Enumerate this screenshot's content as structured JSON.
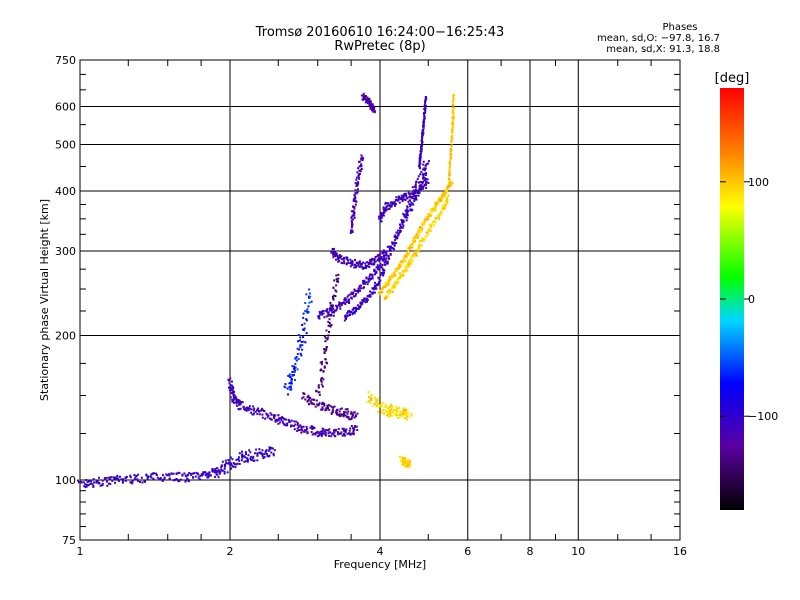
{
  "chart_data": {
    "type": "scatter",
    "title": "Tromsø 20160610 16:24:00−16:25:43",
    "subtitle": "RwPretec (8p)",
    "xlabel": "Frequency [MHz]",
    "ylabel": "Stationary phase Virtual Height [km]",
    "x_scale": "log",
    "y_scale": "log",
    "xlim": [
      1,
      16
    ],
    "ylim": [
      75,
      750
    ],
    "x_ticks": [
      "1",
      "2",
      "4",
      "6",
      "8",
      "10",
      "16"
    ],
    "y_ticks": [
      "75",
      "100",
      "200",
      "300",
      "400",
      "500",
      "600",
      "750"
    ],
    "grid": true,
    "phase_stats": {
      "heading": "Phases",
      "o_line": "mean, sd,O: −97.8, 16.7",
      "x_line": "mean, sd,X:  91.3, 18.8"
    },
    "colorbar": {
      "label": "[deg]",
      "range": [
        -180,
        180
      ],
      "ticks": [
        "100",
        "0",
        "−100"
      ],
      "tick_values": [
        100,
        0,
        -100
      ]
    },
    "series": [
      {
        "segments": [
          {
            "f": [
              1.0,
              1.1,
              1.2,
              1.35,
              1.5,
              1.65,
              1.8,
              1.9
            ],
            "h": [
              98,
              99,
              100,
              101,
              102,
              101,
              103,
              104
            ],
            "phase": -105,
            "spread": 0.03
          },
          {
            "f": [
              1.9,
              2.0,
              2.15,
              2.3,
              2.45
            ],
            "h": [
              104,
              108,
              112,
              113,
              116
            ],
            "phase": -100,
            "spread": 0.04
          },
          {
            "f": [
              2.0,
              2.03,
              2.1,
              2.25,
              2.45,
              2.6
            ],
            "h": [
              160,
              148,
              143,
              139,
              135,
              132
            ],
            "phase": -110,
            "spread": 0.03
          },
          {
            "f": [
              2.6,
              2.8,
              3.0,
              3.2,
              3.4,
              3.6
            ],
            "h": [
              132,
              128,
              126,
              125,
              126,
              128
            ],
            "phase": -115,
            "spread": 0.03
          },
          {
            "f": [
              2.8,
              3.0,
              3.2,
              3.4,
              3.6
            ],
            "h": [
              150,
              143,
              140,
              138,
              135
            ],
            "phase": -130,
            "spread": 0.03
          },
          {
            "f": [
              2.6,
              2.7,
              2.8,
              2.9
            ],
            "h": [
              155,
              170,
              200,
              250
            ],
            "phase": -65,
            "spread": 0.05
          },
          {
            "f": [
              3.0,
              3.1,
              3.2,
              3.3
            ],
            "h": [
              150,
              180,
              225,
              270
            ],
            "phase": -140,
            "spread": 0.04
          },
          {
            "f": [
              3.0,
              3.2,
              3.4,
              3.6,
              3.8,
              4.0,
              4.3,
              4.6,
              4.9
            ],
            "h": [
              220,
              225,
              235,
              248,
              262,
              280,
              320,
              380,
              460
            ],
            "phase": -110,
            "spread": 0.025
          },
          {
            "f": [
              3.2,
              3.3,
              3.5,
              3.7,
              3.9,
              4.1
            ],
            "h": [
              300,
              290,
              283,
              280,
              285,
              300
            ],
            "phase": -110,
            "spread": 0.025
          },
          {
            "f": [
              3.4,
              3.6,
              3.8,
              4.0,
              4.2,
              4.5,
              4.8,
              5.0
            ],
            "h": [
              218,
              228,
              240,
              262,
              300,
              350,
              400,
              460
            ],
            "phase": -105,
            "spread": 0.02
          },
          {
            "f": [
              3.5,
              3.55,
              3.6,
              3.7
            ],
            "h": [
              330,
              370,
              420,
              480
            ],
            "phase": -115,
            "spread": 0.025
          },
          {
            "f": [
              4.0,
              4.1,
              4.3,
              4.5,
              4.8,
              5.0
            ],
            "h": [
              350,
              370,
              380,
              390,
              400,
              420
            ],
            "phase": -110,
            "spread": 0.025
          },
          {
            "f": [
              4.8,
              4.85,
              4.9,
              4.95
            ],
            "h": [
              450,
              500,
              560,
              630
            ],
            "phase": -105,
            "spread": 0.01
          },
          {
            "f": [
              4.0,
              4.2,
              4.4,
              4.6,
              4.8,
              5.0,
              5.2,
              5.4,
              5.6
            ],
            "h": [
              245,
              262,
              280,
              305,
              330,
              355,
              375,
              395,
              420
            ],
            "phase": 100,
            "spread": 0.018
          },
          {
            "f": [
              4.1,
              4.3,
              4.5,
              4.7,
              5.0,
              5.3,
              5.5
            ],
            "h": [
              240,
              255,
              275,
              295,
              330,
              360,
              390
            ],
            "phase": 95,
            "spread": 0.02
          },
          {
            "f": [
              5.5,
              5.55,
              5.6,
              5.62
            ],
            "h": [
              420,
              480,
              550,
              640
            ],
            "phase": 100,
            "spread": 0.01
          },
          {
            "f": [
              3.8,
              4.0,
              4.2,
              4.4,
              4.6
            ],
            "h": [
              150,
              142,
              139,
              138,
              136
            ],
            "phase": 95,
            "spread": 0.04
          },
          {
            "f": [
              4.4,
              4.5,
              4.6
            ],
            "h": [
              110,
              109,
              108
            ],
            "phase": 95,
            "spread": 0.03
          },
          {
            "f": [
              3.7,
              3.8,
              3.85,
              3.9
            ],
            "h": [
              630,
              615,
              600,
              590
            ],
            "phase": -120,
            "spread": 0.02
          }
        ]
      }
    ]
  }
}
